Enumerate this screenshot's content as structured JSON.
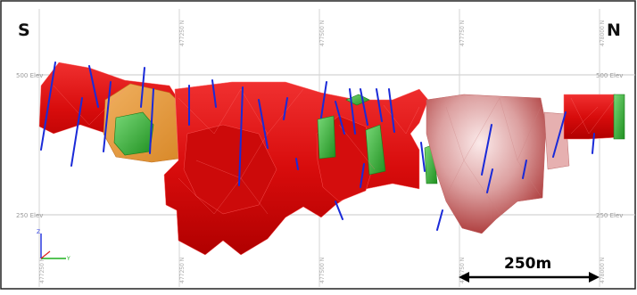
{
  "compass": {
    "left": "S",
    "right": "N"
  },
  "elevation_labels": {
    "upper_left": "500 Elev",
    "upper_right": "500 Elev",
    "lower_left": "250 Elev",
    "lower_right": "250 Elev"
  },
  "northing_labels": [
    "477250 N",
    "477500 N",
    "477750 N",
    "478000 N"
  ],
  "scale_bar": {
    "label": "250m"
  },
  "axis_triad": {
    "z": "Z",
    "y": "Y"
  },
  "colors": {
    "ore_red": "#e01010",
    "ore_dark_red": "#b00000",
    "light_lens": "#e8b8b8",
    "orange_zone": "#e89a3a",
    "green_zone": "#3cb43c",
    "drill_hole": "#1a2ad8",
    "grid_line": "#c8c8c8"
  }
}
